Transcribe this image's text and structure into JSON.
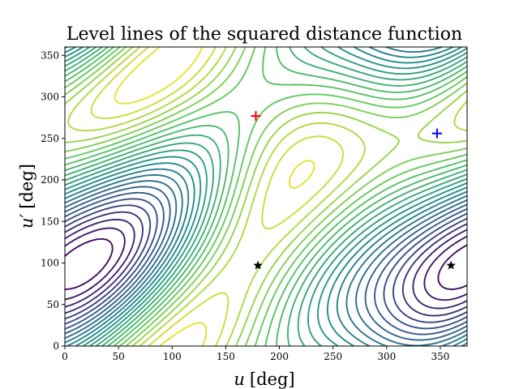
{
  "chart_data": {
    "type": "contour",
    "title": "Level lines of the squared distance function",
    "xlabel_var": "u",
    "xlabel_unit": "[deg]",
    "ylabel_var": "u′",
    "ylabel_unit": "[deg]",
    "xlim": [
      0,
      375
    ],
    "ylim": [
      0,
      360
    ],
    "xticks": [
      0,
      50,
      100,
      150,
      200,
      250,
      300,
      350
    ],
    "yticks": [
      0,
      50,
      100,
      150,
      200,
      250,
      300,
      350
    ],
    "grid": false,
    "colormap": [
      "#440154",
      "#3b528b",
      "#21918c",
      "#5ec962",
      "#fde725"
    ],
    "levels": 24,
    "maximum": {
      "x": 180,
      "y": 277
    },
    "markers": [
      {
        "name": "red-plus",
        "symbol": "+",
        "color": "#ff0000",
        "x": 178,
        "y": 277
      },
      {
        "name": "blue-plus",
        "symbol": "+",
        "color": "#0000ff",
        "x": 347,
        "y": 256
      },
      {
        "name": "star-1",
        "symbol": "★",
        "color": "#000000",
        "x": 180,
        "y": 97
      },
      {
        "name": "star-2",
        "symbol": "★",
        "color": "#000000",
        "x": 360,
        "y": 97
      }
    ]
  }
}
